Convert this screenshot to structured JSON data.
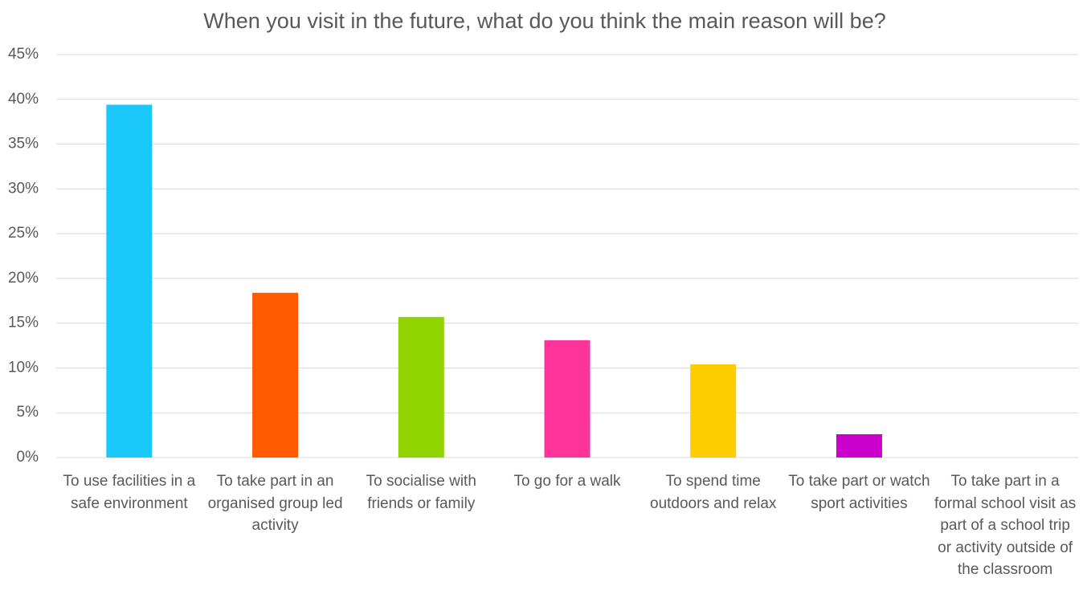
{
  "chart_data": {
    "type": "bar",
    "title": "When you visit in the future, what do you think the main reason will be?",
    "categories": [
      "To use facilities in a safe environment",
      "To take part in an organised group led activity",
      "To socialise with friends or family",
      "To go for a walk",
      "To spend time outdoors and relax",
      "To take part or watch sport activities",
      "To take part in a formal school visit as part of a school trip or activity outside of the classroom"
    ],
    "values": [
      39.4,
      18.4,
      15.7,
      13.1,
      10.4,
      2.6,
      0
    ],
    "colors": [
      "#1ac8fc",
      "#ff5a00",
      "#92d400",
      "#ff3399",
      "#ffcc00",
      "#cc00cc",
      "#0070c0"
    ],
    "ylim": [
      0,
      45
    ],
    "yticks": [
      {
        "value": 0,
        "label": "0%"
      },
      {
        "value": 5,
        "label": "5%"
      },
      {
        "value": 10,
        "label": "10%"
      },
      {
        "value": 15,
        "label": "15%"
      },
      {
        "value": 20,
        "label": "20%"
      },
      {
        "value": 25,
        "label": "25%"
      },
      {
        "value": 30,
        "label": "30%"
      },
      {
        "value": 35,
        "label": "35%"
      },
      {
        "value": 40,
        "label": "40%"
      },
      {
        "value": 45,
        "label": "45%"
      }
    ],
    "grid": true
  }
}
